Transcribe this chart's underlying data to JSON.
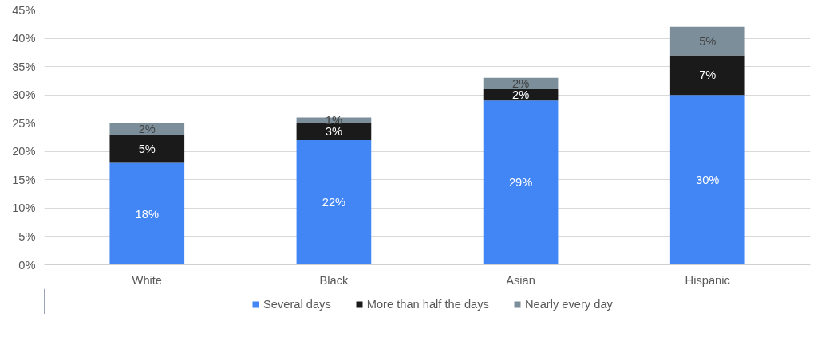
{
  "chart_data": {
    "type": "bar",
    "stacked": true,
    "categories": [
      "White",
      "Black",
      "Asian",
      "Hispanic"
    ],
    "series": [
      {
        "name": "Several days",
        "color": "#4285f4",
        "values": [
          18,
          22,
          29,
          30
        ],
        "value_labels": [
          "18%",
          "22%",
          "29%",
          "30%"
        ]
      },
      {
        "name": "More than half the days",
        "color": "#1a1a1a",
        "values": [
          5,
          3,
          2,
          7
        ],
        "value_labels": [
          "5%",
          "3%",
          "2%",
          "7%"
        ]
      },
      {
        "name": "Nearly every day",
        "color": "#7b8e9a",
        "values": [
          2,
          1,
          2,
          5
        ],
        "value_labels": [
          "2%",
          "1%",
          "2%",
          "5%"
        ]
      }
    ],
    "ylim": [
      0,
      45
    ],
    "yticks": [
      {
        "value": 0,
        "label": "0%"
      },
      {
        "value": 5,
        "label": "5%"
      },
      {
        "value": 10,
        "label": "10%"
      },
      {
        "value": 15,
        "label": "15%"
      },
      {
        "value": 20,
        "label": "20%"
      },
      {
        "value": 25,
        "label": "25%"
      },
      {
        "value": 30,
        "label": "30%"
      },
      {
        "value": 35,
        "label": "35%"
      },
      {
        "value": 40,
        "label": "40%"
      },
      {
        "value": 45,
        "label": "45%"
      }
    ],
    "grid": "y",
    "legend": "bottom"
  }
}
